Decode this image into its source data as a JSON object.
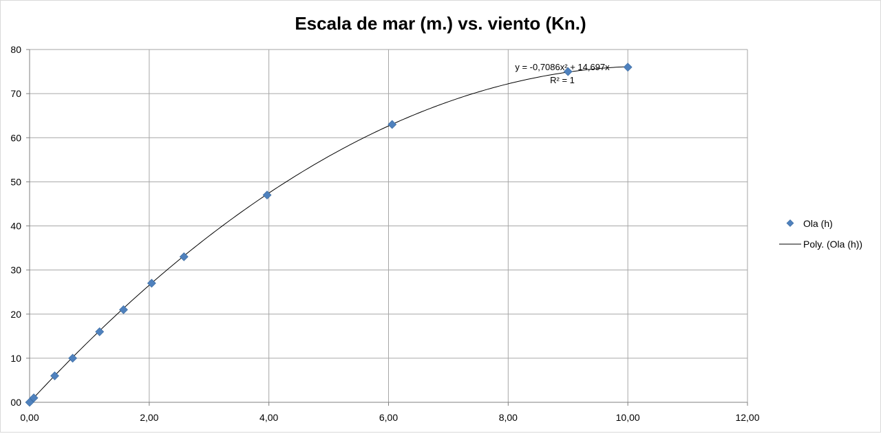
{
  "chart_data": {
    "type": "scatter",
    "title": "Escala de mar (m.) vs. viento (Kn.)",
    "xlabel": "",
    "ylabel": "",
    "xlim": [
      0,
      12
    ],
    "ylim": [
      0,
      80
    ],
    "x_ticks": [
      0,
      2,
      4,
      6,
      8,
      10,
      12
    ],
    "x_tick_labels": [
      "0,00",
      "2,00",
      "4,00",
      "6,00",
      "8,00",
      "10,00",
      "12,00"
    ],
    "y_ticks": [
      0,
      10,
      20,
      30,
      40,
      50,
      60,
      70,
      80
    ],
    "y_tick_labels": [
      "00",
      "10",
      "20",
      "30",
      "40",
      "50",
      "60",
      "70",
      "80"
    ],
    "grid": true,
    "legend_position": "right",
    "series": [
      {
        "name": "Ola (h)",
        "marker": "diamond",
        "color": "#4f81bd",
        "points": [
          {
            "x": 0.0,
            "y": 0
          },
          {
            "x": 0.07,
            "y": 1
          },
          {
            "x": 0.42,
            "y": 6
          },
          {
            "x": 0.72,
            "y": 10
          },
          {
            "x": 1.17,
            "y": 16
          },
          {
            "x": 1.57,
            "y": 21
          },
          {
            "x": 2.04,
            "y": 27
          },
          {
            "x": 2.58,
            "y": 33
          },
          {
            "x": 3.97,
            "y": 47
          },
          {
            "x": 6.06,
            "y": 63
          },
          {
            "x": 9.0,
            "y": 75
          },
          {
            "x": 10.0,
            "y": 76
          }
        ]
      },
      {
        "name": "Poly. (Ola (h))",
        "type": "trendline",
        "fit": "polynomial",
        "coefficients": {
          "a2": -0.7086,
          "a1": 14.697,
          "a0": 0
        },
        "x_range": [
          0,
          10
        ],
        "color": "#000000"
      }
    ],
    "annotations": {
      "equation": "y = -0,7086x² + 14,697x",
      "r_squared": "R² = 1"
    }
  }
}
